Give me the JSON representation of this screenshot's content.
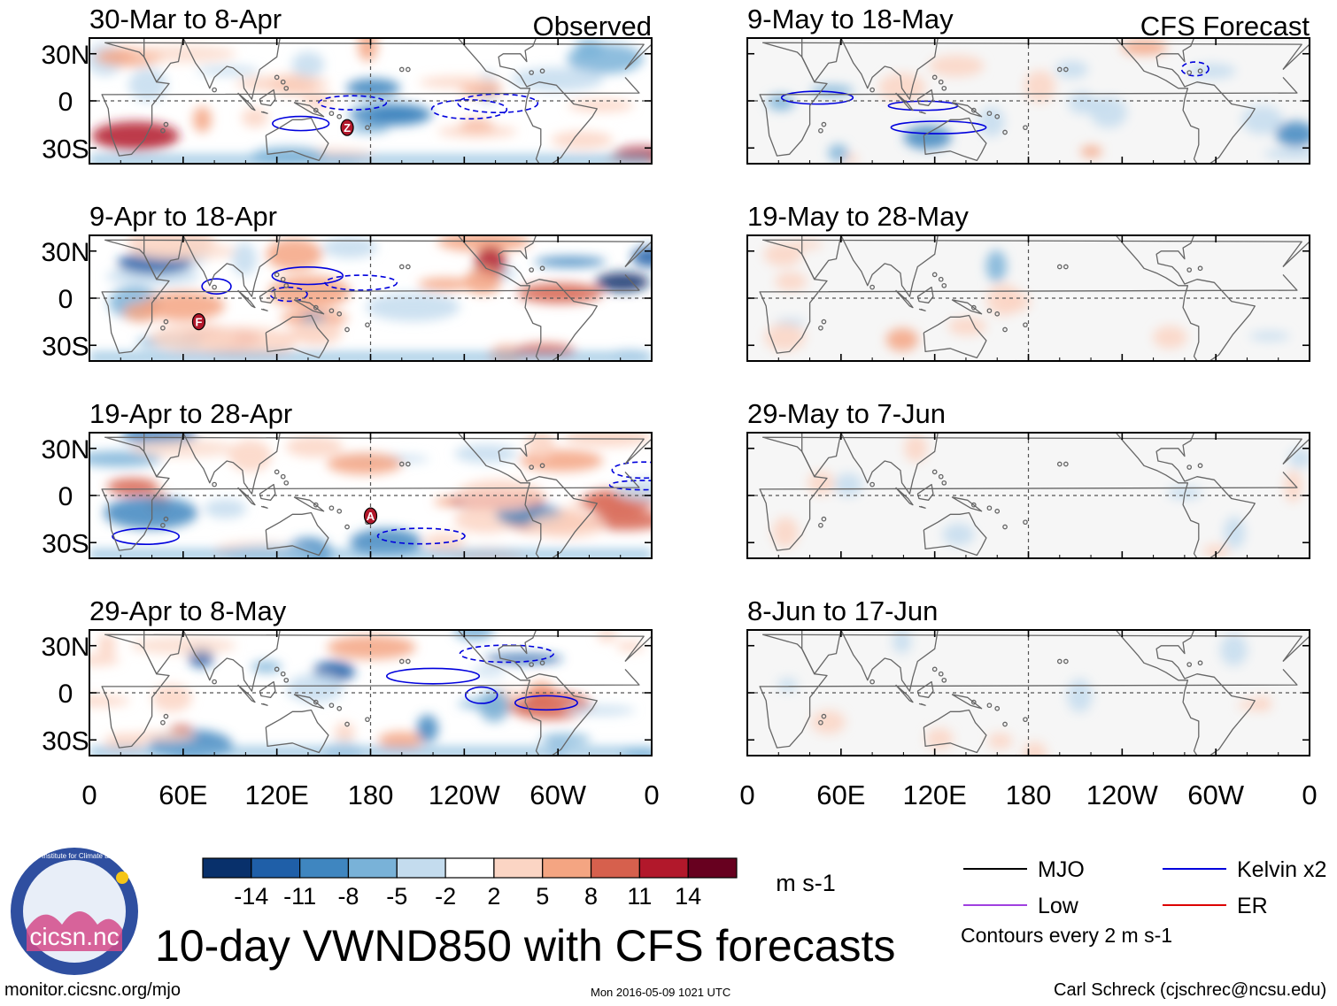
{
  "chart_data": {
    "type": "heatmap",
    "title": "10-day VWND850 with CFS forecasts",
    "variable": "VWND850",
    "units": "m s-1",
    "colorbar": {
      "levels": [
        -14,
        -11,
        -8,
        -5,
        -2,
        2,
        5,
        8,
        11,
        14
      ],
      "labels": [
        "-14",
        "-11",
        "-8",
        "-5",
        "-2",
        "2",
        "5",
        "8",
        "11",
        "14"
      ],
      "colors": [
        "#08306b",
        "#1f5fa8",
        "#3f86c0",
        "#79b2d8",
        "#c4dcee",
        "#ffffff",
        "#fbd5c4",
        "#f4a582",
        "#d6604d",
        "#b2182b",
        "#67001f"
      ]
    },
    "x_ticks": [
      "0",
      "60E",
      "120E",
      "180",
      "120W",
      "60W",
      "0"
    ],
    "y_ticks": [
      "30N",
      "0",
      "30S"
    ],
    "columns": [
      {
        "label": "Observed",
        "panels": [
          {
            "period": "30-Mar to 8-Apr",
            "markers": [
              "Z"
            ]
          },
          {
            "period": "9-Apr to 18-Apr",
            "markers": [
              "F"
            ]
          },
          {
            "period": "19-Apr to 28-Apr",
            "markers": [
              "A"
            ]
          },
          {
            "period": "29-Apr to 8-May",
            "markers": []
          }
        ]
      },
      {
        "label": "CFS Forecast",
        "panels": [
          {
            "period": "9-May to 18-May",
            "markers": []
          },
          {
            "period": "19-May to 28-May",
            "markers": []
          },
          {
            "period": "29-May to 7-Jun",
            "markers": []
          },
          {
            "period": "8-Jun to 17-Jun",
            "markers": []
          }
        ]
      }
    ],
    "legend": [
      {
        "label": "MJO",
        "color": "#000000"
      },
      {
        "label": "Kelvin x2",
        "color": "#0000dd"
      },
      {
        "label": "Low",
        "color": "#a040e0"
      },
      {
        "label": "ER",
        "color": "#dd0000"
      }
    ],
    "contour_note": "Contours every 2 m s-1"
  },
  "footer": {
    "url": "monitor.cicsnc.org/mjo",
    "timestamp": "Mon 2016-05-09 1021 UTC",
    "credit": "Carl Schreck (cjschrec@ncsu.edu)",
    "logo_text": "cicsn.nc",
    "logo_ring_text": "Cooperative Institute for Climate and Satellites"
  }
}
